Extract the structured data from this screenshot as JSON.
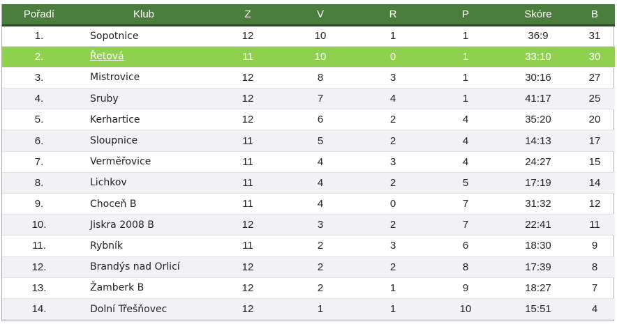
{
  "colors": {
    "header_bg": "#4a7d3e",
    "highlight_bg": "#8fd14f",
    "alt_row_bg": "#f2f2f6"
  },
  "table": {
    "headers": [
      "Pořadí",
      "Klub",
      "Z",
      "V",
      "R",
      "P",
      "Skóre",
      "B"
    ],
    "highlight_row": 1,
    "rows": [
      [
        "1.",
        "Sopotnice",
        "12",
        "10",
        "1",
        "1",
        "36:9",
        "31"
      ],
      [
        "2.",
        "Řetová",
        "11",
        "10",
        "0",
        "1",
        "33:10",
        "30"
      ],
      [
        "3.",
        "Mistrovice",
        "12",
        "8",
        "3",
        "1",
        "30:16",
        "27"
      ],
      [
        "4.",
        "Sruby",
        "12",
        "7",
        "4",
        "1",
        "41:17",
        "25"
      ],
      [
        "5.",
        "Kerhartice",
        "12",
        "6",
        "2",
        "4",
        "35:20",
        "20"
      ],
      [
        "6.",
        "Sloupnice",
        "11",
        "5",
        "2",
        "4",
        "14:13",
        "17"
      ],
      [
        "7.",
        "Verměřovice",
        "11",
        "4",
        "3",
        "4",
        "24:27",
        "15"
      ],
      [
        "8.",
        "Lichkov",
        "11",
        "4",
        "2",
        "5",
        "17:19",
        "14"
      ],
      [
        "9.",
        "Choceň B",
        "11",
        "4",
        "0",
        "7",
        "31:32",
        "12"
      ],
      [
        "10.",
        "Jiskra 2008 B",
        "12",
        "3",
        "2",
        "7",
        "22:41",
        "11"
      ],
      [
        "11.",
        "Rybník",
        "11",
        "2",
        "3",
        "6",
        "18:30",
        "9"
      ],
      [
        "12.",
        "Brandýs nad Orlicí",
        "12",
        "2",
        "2",
        "8",
        "17:39",
        "8"
      ],
      [
        "13.",
        "Žamberk B",
        "12",
        "2",
        "1",
        "9",
        "18:27",
        "7"
      ],
      [
        "14.",
        "Dolní Třešňovec",
        "12",
        "1",
        "1",
        "10",
        "15:51",
        "4"
      ]
    ]
  }
}
